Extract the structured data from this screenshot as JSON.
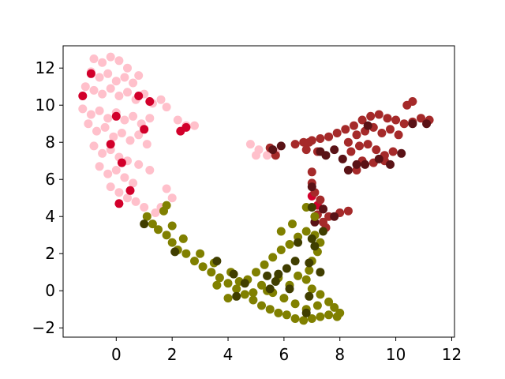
{
  "chart_data": {
    "type": "scatter",
    "title": "",
    "xlabel": "",
    "ylabel": "",
    "xlim": [
      -1.9,
      12.1
    ],
    "ylim": [
      -2.5,
      13.2
    ],
    "xticks": [
      0,
      2,
      4,
      6,
      8,
      10,
      12
    ],
    "xtick_labels": [
      "0",
      "2",
      "4",
      "6",
      "8",
      "10",
      "12"
    ],
    "yticks": [
      -2,
      0,
      2,
      4,
      6,
      8,
      10,
      12
    ],
    "ytick_labels": [
      "−2",
      "0",
      "2",
      "4",
      "6",
      "8",
      "10",
      "12"
    ],
    "grid": false,
    "legend": "none",
    "series": [
      {
        "color": "#ffc0cb",
        "points": [
          [
            -0.8,
            12.5
          ],
          [
            -0.5,
            12.3
          ],
          [
            -0.2,
            12.6
          ],
          [
            0.1,
            12.4
          ],
          [
            0.4,
            12.0
          ],
          [
            -0.9,
            11.8
          ],
          [
            -0.6,
            11.5
          ],
          [
            -0.3,
            11.7
          ],
          [
            0.0,
            11.3
          ],
          [
            0.3,
            11.5
          ],
          [
            0.6,
            11.2
          ],
          [
            0.8,
            11.6
          ],
          [
            -1.1,
            11.0
          ],
          [
            -0.8,
            10.8
          ],
          [
            -0.5,
            10.6
          ],
          [
            -0.2,
            10.9
          ],
          [
            0.1,
            10.5
          ],
          [
            0.4,
            10.7
          ],
          [
            0.7,
            10.3
          ],
          [
            1.0,
            10.6
          ],
          [
            1.3,
            10.1
          ],
          [
            1.6,
            10.3
          ],
          [
            1.8,
            9.9
          ],
          [
            -1.2,
            9.8
          ],
          [
            -0.9,
            9.5
          ],
          [
            -0.6,
            9.7
          ],
          [
            -0.3,
            9.3
          ],
          [
            0.0,
            9.6
          ],
          [
            0.3,
            9.2
          ],
          [
            0.6,
            9.4
          ],
          [
            0.9,
            9.0
          ],
          [
            1.2,
            9.3
          ],
          [
            2.2,
            9.2
          ],
          [
            2.5,
            8.9
          ],
          [
            2.8,
            8.9
          ],
          [
            -1.0,
            9.0
          ],
          [
            -0.7,
            8.6
          ],
          [
            -0.4,
            8.8
          ],
          [
            -0.1,
            8.3
          ],
          [
            0.2,
            8.5
          ],
          [
            0.5,
            8.1
          ],
          [
            0.8,
            8.4
          ],
          [
            1.1,
            7.9
          ],
          [
            -0.8,
            7.8
          ],
          [
            -0.5,
            7.4
          ],
          [
            -0.2,
            7.6
          ],
          [
            0.1,
            7.2
          ],
          [
            0.4,
            7.0
          ],
          [
            0.8,
            6.8
          ],
          [
            1.2,
            6.5
          ],
          [
            -0.6,
            6.7
          ],
          [
            -0.3,
            6.3
          ],
          [
            0.0,
            6.5
          ],
          [
            0.3,
            6.1
          ],
          [
            0.6,
            5.8
          ],
          [
            -0.2,
            5.6
          ],
          [
            0.1,
            5.3
          ],
          [
            0.4,
            5.0
          ],
          [
            0.7,
            4.8
          ],
          [
            1.0,
            4.5
          ],
          [
            1.8,
            5.5
          ],
          [
            2.0,
            5.0
          ],
          [
            1.6,
            4.5
          ],
          [
            1.4,
            4.2
          ],
          [
            4.8,
            7.9
          ],
          [
            5.1,
            7.6
          ],
          [
            5.4,
            7.3
          ],
          [
            5.7,
            7.5
          ],
          [
            5.0,
            7.3
          ]
        ]
      },
      {
        "color": "#d2002b",
        "points": [
          [
            -0.9,
            11.7
          ],
          [
            -1.2,
            10.5
          ],
          [
            0.8,
            10.5
          ],
          [
            1.2,
            10.2
          ],
          [
            0.0,
            9.4
          ],
          [
            2.5,
            8.8
          ],
          [
            2.3,
            8.6
          ],
          [
            -0.2,
            7.9
          ],
          [
            0.2,
            6.9
          ],
          [
            1.0,
            8.7
          ],
          [
            0.5,
            5.4
          ],
          [
            0.1,
            4.7
          ],
          [
            7.0,
            5.1
          ],
          [
            7.2,
            4.6
          ]
        ]
      },
      {
        "color": "#a52a2a",
        "points": [
          [
            6.4,
            7.9
          ],
          [
            6.7,
            8.0
          ],
          [
            7.0,
            8.1
          ],
          [
            7.3,
            8.2
          ],
          [
            7.6,
            8.3
          ],
          [
            7.9,
            8.5
          ],
          [
            8.2,
            8.7
          ],
          [
            8.5,
            8.9
          ],
          [
            8.8,
            9.2
          ],
          [
            9.1,
            9.4
          ],
          [
            9.4,
            9.5
          ],
          [
            9.7,
            9.3
          ],
          [
            10.0,
            9.2
          ],
          [
            10.3,
            9.0
          ],
          [
            10.6,
            9.1
          ],
          [
            10.9,
            9.3
          ],
          [
            11.2,
            9.2
          ],
          [
            8.3,
            8.0
          ],
          [
            8.6,
            8.4
          ],
          [
            8.9,
            8.6
          ],
          [
            9.2,
            8.8
          ],
          [
            9.5,
            8.5
          ],
          [
            9.8,
            8.7
          ],
          [
            10.1,
            8.4
          ],
          [
            8.4,
            7.5
          ],
          [
            8.7,
            7.8
          ],
          [
            9.0,
            7.9
          ],
          [
            9.3,
            7.6
          ],
          [
            9.6,
            7.3
          ],
          [
            9.9,
            7.5
          ],
          [
            8.8,
            7.0
          ],
          [
            9.2,
            6.9
          ],
          [
            9.6,
            7.0
          ],
          [
            8.6,
            6.5
          ],
          [
            10.4,
            10.0
          ],
          [
            10.6,
            10.2
          ],
          [
            6.9,
            8.0
          ],
          [
            7.2,
            7.5
          ],
          [
            7.0,
            6.4
          ],
          [
            7.0,
            5.8
          ],
          [
            7.1,
            5.3
          ],
          [
            7.3,
            4.9
          ],
          [
            7.4,
            4.4
          ],
          [
            7.2,
            4.1
          ],
          [
            7.4,
            3.7
          ],
          [
            7.6,
            4.0
          ],
          [
            7.5,
            3.4
          ],
          [
            8.3,
            4.3
          ],
          [
            8.0,
            4.2
          ],
          [
            5.5,
            7.7
          ],
          [
            5.7,
            7.3
          ],
          [
            6.8,
            7.6
          ]
        ]
      },
      {
        "color": "#5a1216",
        "points": [
          [
            5.9,
            7.8
          ],
          [
            5.6,
            7.6
          ],
          [
            7.3,
            7.5
          ],
          [
            7.5,
            7.3
          ],
          [
            8.1,
            7.1
          ],
          [
            8.3,
            6.5
          ],
          [
            8.6,
            6.8
          ],
          [
            8.9,
            6.8
          ],
          [
            9.4,
            7.1
          ],
          [
            9.8,
            6.8
          ],
          [
            10.2,
            7.4
          ],
          [
            10.6,
            9.0
          ],
          [
            11.1,
            9.0
          ],
          [
            9.0,
            8.9
          ],
          [
            7.8,
            7.6
          ],
          [
            7.8,
            4.0
          ],
          [
            7.1,
            3.7
          ],
          [
            7.4,
            4.4
          ],
          [
            7.0,
            5.6
          ]
        ]
      },
      {
        "color": "#808000",
        "points": [
          [
            1.1,
            4.0
          ],
          [
            1.3,
            3.6
          ],
          [
            1.5,
            3.3
          ],
          [
            1.8,
            3.0
          ],
          [
            2.0,
            2.6
          ],
          [
            2.2,
            2.2
          ],
          [
            2.5,
            2.0
          ],
          [
            2.8,
            1.6
          ],
          [
            3.1,
            1.3
          ],
          [
            3.4,
            1.0
          ],
          [
            3.7,
            0.7
          ],
          [
            4.0,
            0.4
          ],
          [
            4.3,
            0.1
          ],
          [
            4.6,
            -0.2
          ],
          [
            4.9,
            -0.5
          ],
          [
            5.2,
            -0.8
          ],
          [
            5.5,
            -1.0
          ],
          [
            5.8,
            -1.2
          ],
          [
            6.1,
            -1.3
          ],
          [
            6.4,
            -1.5
          ],
          [
            6.7,
            -1.6
          ],
          [
            7.0,
            -1.5
          ],
          [
            7.3,
            -1.4
          ],
          [
            7.6,
            -1.3
          ],
          [
            7.9,
            -1.4
          ],
          [
            8.0,
            -1.2
          ],
          [
            2.0,
            3.5
          ],
          [
            2.4,
            2.8
          ],
          [
            3.0,
            2.0
          ],
          [
            3.5,
            1.5
          ],
          [
            4.1,
            1.0
          ],
          [
            4.7,
            0.6
          ],
          [
            5.2,
            0.3
          ],
          [
            5.6,
            -0.1
          ],
          [
            6.0,
            -0.4
          ],
          [
            6.4,
            -0.7
          ],
          [
            6.8,
            -1.0
          ],
          [
            7.2,
            -0.8
          ],
          [
            7.6,
            -0.6
          ],
          [
            7.8,
            -0.9
          ],
          [
            5.0,
            1.0
          ],
          [
            5.3,
            1.4
          ],
          [
            5.6,
            1.8
          ],
          [
            5.9,
            2.2
          ],
          [
            6.2,
            2.5
          ],
          [
            6.5,
            2.9
          ],
          [
            6.8,
            3.2
          ],
          [
            7.1,
            3.0
          ],
          [
            7.3,
            2.6
          ],
          [
            7.2,
            2.1
          ],
          [
            7.0,
            1.6
          ],
          [
            6.9,
            1.1
          ],
          [
            6.8,
            0.6
          ],
          [
            7.0,
            0.1
          ],
          [
            7.3,
            -0.2
          ],
          [
            6.5,
            0.8
          ],
          [
            6.2,
            0.3
          ],
          [
            5.8,
            0.7
          ],
          [
            5.4,
            0.0
          ],
          [
            4.9,
            -0.1
          ],
          [
            4.4,
            0.5
          ],
          [
            1.8,
            4.6
          ],
          [
            1.7,
            4.3
          ],
          [
            6.8,
            4.5
          ],
          [
            7.1,
            4.0
          ],
          [
            6.3,
            3.6
          ],
          [
            5.9,
            3.2
          ],
          [
            3.6,
            0.3
          ],
          [
            4.0,
            -0.4
          ]
        ]
      },
      {
        "color": "#403e00",
        "points": [
          [
            1.0,
            3.6
          ],
          [
            2.1,
            2.1
          ],
          [
            3.6,
            1.6
          ],
          [
            4.2,
            0.9
          ],
          [
            4.6,
            0.4
          ],
          [
            5.4,
            0.8
          ],
          [
            5.7,
            0.5
          ],
          [
            6.1,
            1.2
          ],
          [
            6.4,
            1.6
          ],
          [
            6.9,
            1.5
          ],
          [
            7.1,
            2.4
          ],
          [
            7.0,
            2.8
          ],
          [
            7.4,
            3.2
          ],
          [
            6.5,
            2.6
          ],
          [
            5.8,
            0.9
          ],
          [
            6.2,
            0.1
          ],
          [
            6.9,
            -0.3
          ],
          [
            7.3,
            1.0
          ],
          [
            6.8,
            -1.2
          ],
          [
            5.5,
            0.1
          ],
          [
            4.3,
            -0.3
          ],
          [
            7.0,
            4.5
          ]
        ]
      }
    ]
  }
}
